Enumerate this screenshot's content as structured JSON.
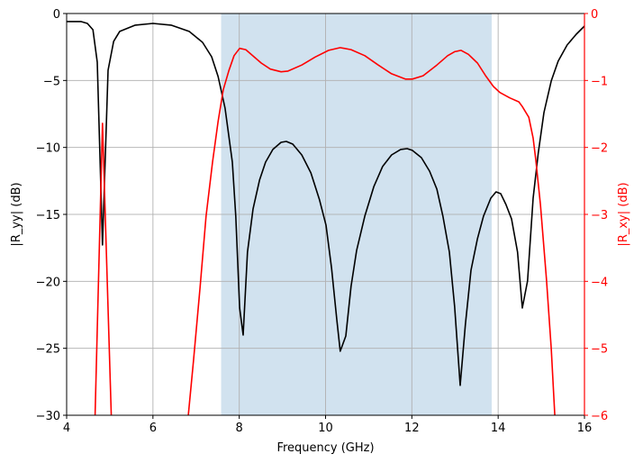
{
  "chart_data": {
    "type": "line",
    "title": "",
    "xlabel": "Frequency (GHz)",
    "ylabel_left": "|R_yy| (dB)",
    "ylabel_right": "|R_xy| (dB)",
    "xlim": [
      4,
      16
    ],
    "ylim_left": [
      -30,
      0
    ],
    "ylim_right": [
      -6,
      0
    ],
    "xticks": [
      "4",
      "6",
      "8",
      "10",
      "12",
      "14",
      "16"
    ],
    "yticks_left": [
      "0",
      "−5",
      "−10",
      "−15",
      "−20",
      "−25",
      "−30"
    ],
    "yticks_right": [
      "0",
      "−1",
      "−2",
      "−3",
      "−4",
      "−5",
      "−6"
    ],
    "grid": true,
    "shaded_band": {
      "x_start": 7.58,
      "x_end": 13.85,
      "color": "#d1e2ef"
    },
    "colors": {
      "left_series": "#000000",
      "right_series": "#ff0000",
      "right_axis": "#ff0000",
      "grid": "#b0b0b0"
    },
    "series": [
      {
        "axis": "left",
        "color": "#000000",
        "x": [
          4.0,
          4.33,
          4.48,
          4.61,
          4.71,
          4.83,
          4.96,
          5.09,
          5.23,
          5.59,
          6.0,
          6.42,
          6.84,
          7.15,
          7.36,
          7.51,
          7.67,
          7.84,
          7.92,
          8.01,
          8.09,
          8.19,
          8.32,
          8.47,
          8.61,
          8.78,
          8.97,
          9.09,
          9.24,
          9.45,
          9.66,
          9.86,
          10.01,
          10.14,
          10.26,
          10.34,
          10.47,
          10.59,
          10.72,
          10.91,
          11.12,
          11.32,
          11.53,
          11.74,
          11.89,
          12.01,
          12.22,
          12.41,
          12.58,
          12.72,
          12.87,
          12.99,
          13.12,
          13.24,
          13.37,
          13.52,
          13.66,
          13.83,
          13.95,
          14.06,
          14.18,
          14.31,
          14.45,
          14.56,
          14.68,
          14.81,
          14.93,
          15.06,
          15.23,
          15.39,
          15.6,
          15.81,
          16.0
        ],
        "y": [
          -0.6,
          -0.6,
          -0.74,
          -1.21,
          -3.63,
          -17.28,
          -4.24,
          -2.08,
          -1.34,
          -0.87,
          -0.74,
          -0.87,
          -1.34,
          -2.15,
          -3.23,
          -4.71,
          -7.06,
          -11.1,
          -15.13,
          -21.99,
          -24.01,
          -17.82,
          -14.59,
          -12.44,
          -11.1,
          -10.15,
          -9.62,
          -9.55,
          -9.75,
          -10.56,
          -11.9,
          -13.92,
          -15.8,
          -19.03,
          -22.86,
          -25.22,
          -24.08,
          -20.38,
          -17.69,
          -15.13,
          -12.91,
          -11.43,
          -10.56,
          -10.15,
          -10.09,
          -10.22,
          -10.76,
          -11.77,
          -13.11,
          -15.13,
          -17.82,
          -21.86,
          -27.77,
          -23.2,
          -19.17,
          -16.81,
          -15.13,
          -13.79,
          -13.32,
          -13.45,
          -14.26,
          -15.33,
          -17.82,
          -21.99,
          -19.97,
          -13.79,
          -10.42,
          -7.4,
          -5.04,
          -3.56,
          -2.35,
          -1.55,
          -0.94
        ]
      },
      {
        "axis": "right",
        "color": "#ff0000",
        "x": [
          4.62,
          4.83,
          5.08,
          6.8,
          6.82,
          6.94,
          7.09,
          7.23,
          7.38,
          7.51,
          7.63,
          7.76,
          7.88,
          8.01,
          8.15,
          8.51,
          8.72,
          8.97,
          9.13,
          9.45,
          9.76,
          10.07,
          10.34,
          10.59,
          10.91,
          11.22,
          11.53,
          11.85,
          12.01,
          12.26,
          12.58,
          12.83,
          12.99,
          13.14,
          13.31,
          13.52,
          13.72,
          13.89,
          14.04,
          14.27,
          14.48,
          14.56,
          14.71,
          14.81,
          14.87,
          14.98,
          15.12,
          15.23,
          15.31,
          15.36
        ],
        "y": [
          -7.0,
          -1.64,
          -7.0,
          -6.3,
          -6.0,
          -5.18,
          -4.1,
          -3.03,
          -2.22,
          -1.61,
          -1.14,
          -0.85,
          -0.63,
          -0.52,
          -0.54,
          -0.74,
          -0.83,
          -0.87,
          -0.86,
          -0.77,
          -0.65,
          -0.55,
          -0.51,
          -0.54,
          -0.63,
          -0.77,
          -0.9,
          -0.98,
          -0.98,
          -0.93,
          -0.77,
          -0.63,
          -0.57,
          -0.55,
          -0.61,
          -0.74,
          -0.94,
          -1.09,
          -1.18,
          -1.26,
          -1.32,
          -1.39,
          -1.55,
          -1.86,
          -2.18,
          -2.85,
          -3.97,
          -5.0,
          -5.96,
          -6.5
        ]
      }
    ]
  }
}
